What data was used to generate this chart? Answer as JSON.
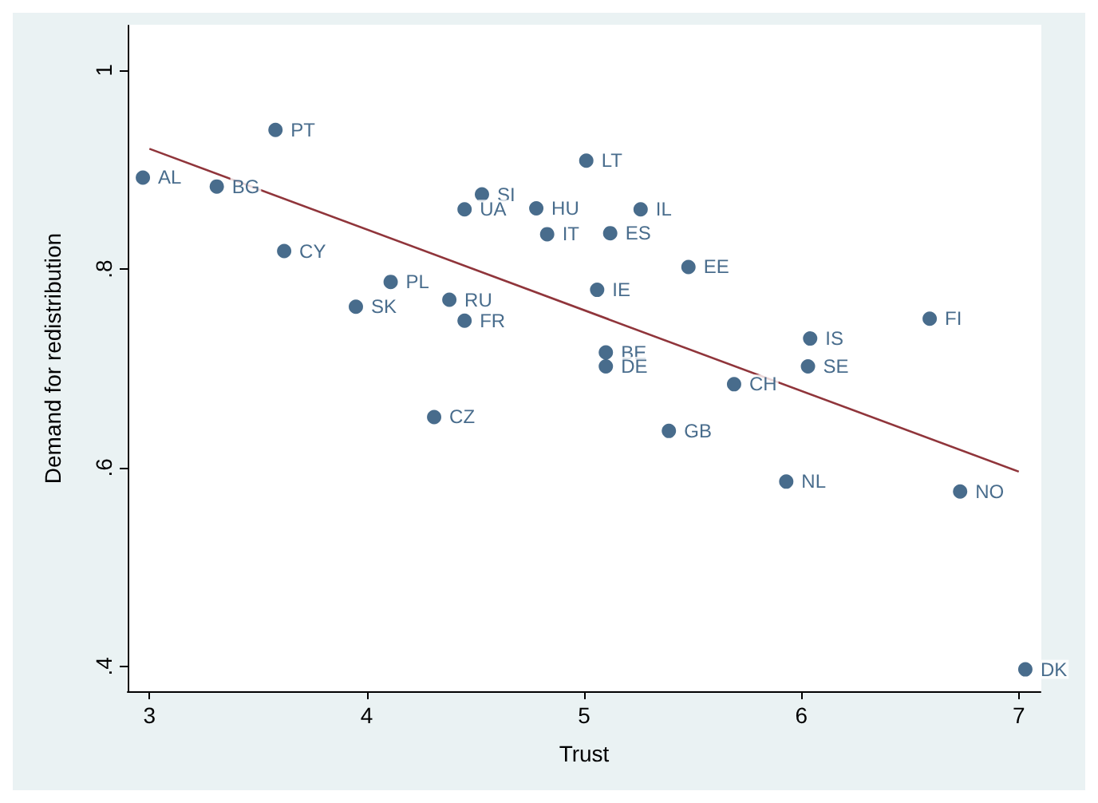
{
  "chart_data": {
    "type": "scatter",
    "xlabel": "Trust",
    "ylabel": "Demand for redistribution",
    "xlim": [
      2.9,
      7.1
    ],
    "xticks": [
      3,
      4,
      5,
      6,
      7
    ],
    "ylim": [
      0.375,
      1.045
    ],
    "yticks": [
      {
        "value": 0.4,
        "label": ".4"
      },
      {
        "value": 0.6,
        "label": ".6"
      },
      {
        "value": 0.8,
        "label": ".8"
      },
      {
        "value": 1,
        "label": "1"
      }
    ],
    "grid": false,
    "marker": "circle",
    "series": [
      {
        "color": "#1a476f",
        "x": [
          2.97,
          3.31,
          3.58,
          3.62,
          4.53,
          4.45,
          4.78,
          4.83,
          5.01,
          5.26,
          5.12,
          5.48,
          5.06,
          4.11,
          3.95,
          4.38,
          4.45,
          4.31,
          5.1,
          5.1,
          5.39,
          5.69,
          6.04,
          6.03,
          6.59,
          5.93,
          6.73,
          7.03
        ],
        "values": [
          0.892,
          0.883,
          0.94,
          0.818,
          0.875,
          0.86,
          0.861,
          0.835,
          0.909,
          0.86,
          0.836,
          0.802,
          0.779,
          0.787,
          0.762,
          0.769,
          0.748,
          0.651,
          0.716,
          0.702,
          0.637,
          0.684,
          0.73,
          0.702,
          0.75,
          0.586,
          0.576,
          0.397
        ],
        "value_labels": [
          "AL",
          "BG",
          "PT",
          "CY",
          "SI",
          "UA",
          "HU",
          "IT",
          "LT",
          "IL",
          "ES",
          "EE",
          "IE",
          "PL",
          "SK",
          "RU",
          "FR",
          "CZ",
          "BE",
          "DE",
          "GB",
          "CH",
          "IS",
          "SE",
          "FI",
          "NL",
          "NO",
          "DK"
        ]
      },
      {
        "type": "line",
        "color": "#90353b",
        "x": [
          3,
          7
        ],
        "values": [
          0.921,
          0.596
        ],
        "marker": "none",
        "line_style": "solid"
      }
    ]
  }
}
